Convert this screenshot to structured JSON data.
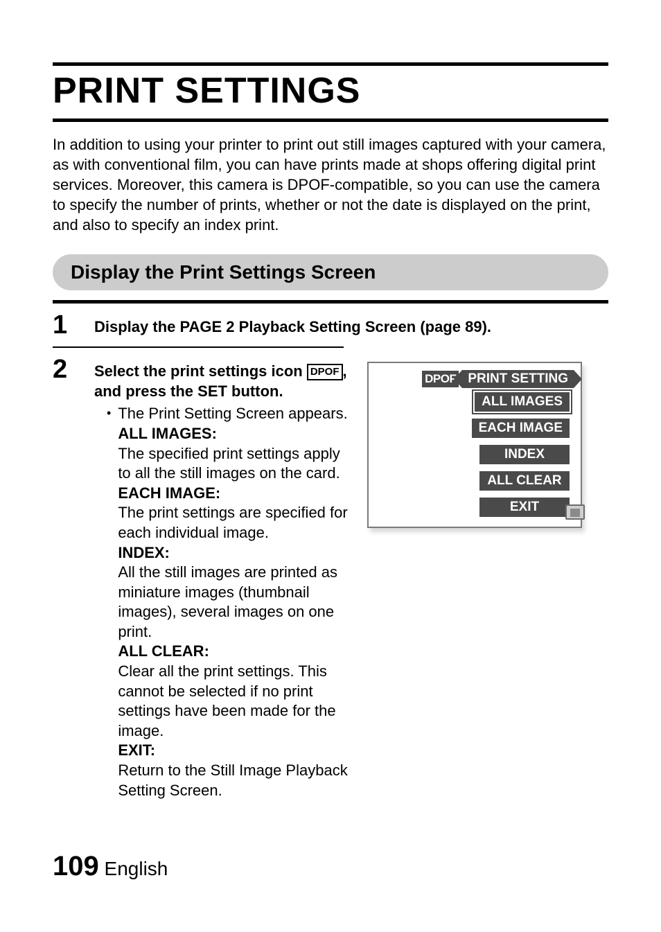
{
  "title": "PRINT SETTINGS",
  "intro": "In addition to using your printer to print out still images captured with your camera, as with conventional film, you can have prints made at shops offering digital print services. Moreover, this camera is DPOF-compatible, so you can use the camera to specify the number of prints, whether or not the date is displayed on the print, and also to specify an index print.",
  "section_heading": "Display the Print Settings Screen",
  "step1": {
    "num": "1",
    "text": "Display the PAGE 2 Playback Setting Screen (page 89)."
  },
  "step2": {
    "num": "2",
    "lead_a": "Select the print settings icon ",
    "dpof_icon": "DPOF",
    "lead_b": ", and press the SET button.",
    "bullet": "The Print Setting Screen appears.",
    "defs": [
      {
        "label": "ALL IMAGES:",
        "body": "The specified print settings apply to all the still images on the card."
      },
      {
        "label": "EACH IMAGE:",
        "body": "The print settings are specified for each individual image."
      },
      {
        "label": "INDEX:",
        "body": "All the still images are printed as miniature images (thumbnail images), several images on one print."
      },
      {
        "label": "ALL CLEAR:",
        "body": "Clear all the print settings. This cannot be selected if no print settings have been made for the image."
      },
      {
        "label": "EXIT:",
        "body": "Return to the Still Image Playback Setting Screen."
      }
    ]
  },
  "screen": {
    "dpof": "DPOF",
    "title": "PRINT SETTING",
    "items": [
      "ALL IMAGES",
      "EACH IMAGE",
      "INDEX",
      "ALL CLEAR",
      "EXIT"
    ],
    "colors": {
      "item_bg": "#4a4a4a",
      "item_fg": "#ffffff",
      "border": "#7a7a7a",
      "bg": "#ffffff"
    },
    "selected_index": 0
  },
  "footer": {
    "page_num": "109",
    "lang": " English"
  }
}
